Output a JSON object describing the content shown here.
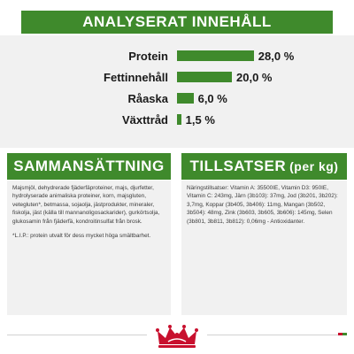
{
  "analysis": {
    "title": "ANALYSERAT INNEHÅLL",
    "rows": [
      {
        "label": "Protein",
        "value": "28,0 %",
        "percent": 28.0
      },
      {
        "label": "Fettinnehåll",
        "value": "20,0 %",
        "percent": 20.0
      },
      {
        "label": "Råaska",
        "value": "6,0 %",
        "percent": 6.0
      },
      {
        "label": "Växttråd",
        "value": "1,5 %",
        "percent": 1.5
      }
    ]
  },
  "composition": {
    "title": "SAMMANSÄTTNING",
    "text": "Majsmjöl, dehydrerade fjäderfäproteiner, majs, djurfetter, hydrolyserade animaliska proteiner, korn, majsgluten, vetegluten*, betmassa, sojaolja, jästprodukter, mineraler, fiskolja, jäst (källa till mannanoligosackarider), gurkörtsolja, glukosamin från fjäderfä, kondroitinsulfat från brosk.",
    "note": "*L.I.P.: protein utvalt för dess mycket höga smältbarhet."
  },
  "additives": {
    "title": "TILLSATSER",
    "unit": "(per kg)",
    "text": "Näringstillsatser: Vitamin A: 35500IE, Vitamin D3: 950IE, Vitamin C: 243mg, Järn (3b103): 37mg, Jod (3b201, 3b202): 3,7mg, Koppar (3b405, 3b406): 11mg, Mangan (3b502, 3b504): 48mg, Zink (3b603, 3b605, 3b606): 145mg, Selen (3b801, 3b811, 3b812): 0,06mg - Antioxidanter."
  },
  "colors": {
    "accent_green": "#3f8a2c",
    "panel_gray": "#f1f1f1",
    "brand_red": "#c8102e"
  },
  "logo": {
    "name": "royal-canin-crown-logo"
  }
}
